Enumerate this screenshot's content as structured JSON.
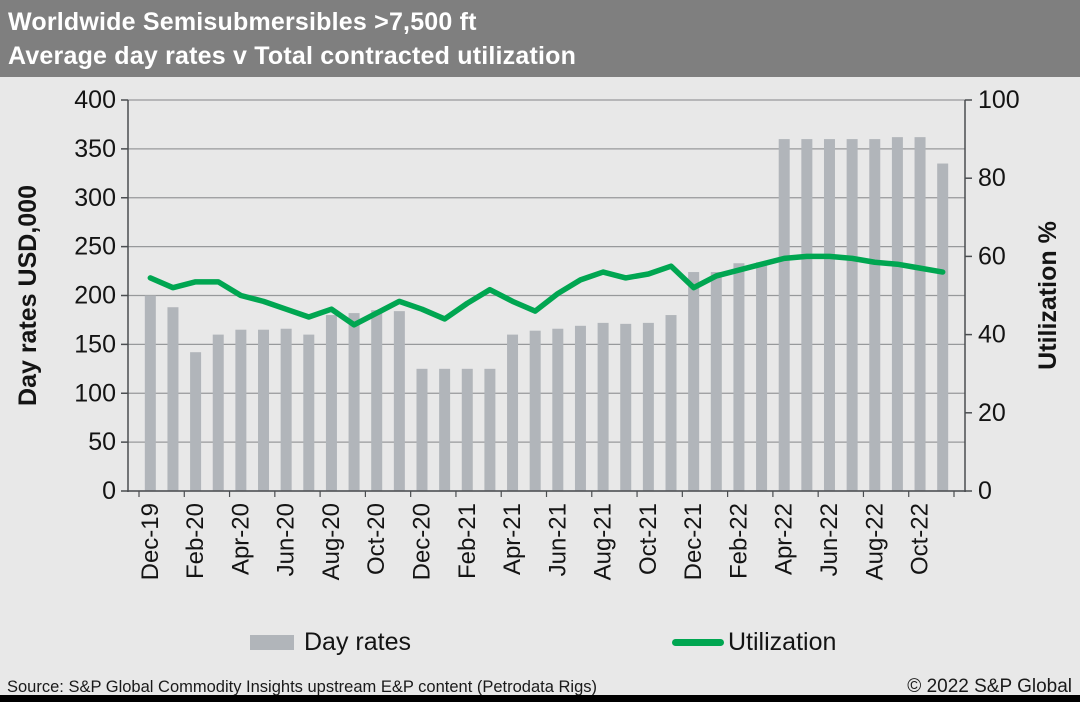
{
  "header": {
    "title_line1": "Worldwide Semisubmersibles >7,500 ft",
    "title_line2": "Average day rates v Total contracted utilization"
  },
  "legend": {
    "day_rates_label": "Day rates",
    "utilization_label": "Utilization"
  },
  "footer": {
    "source": "Source: S&P Global Commodity Insights upstream E&P content (Petrodata Rigs)",
    "copyright": "© 2022 S&P Global"
  },
  "colors": {
    "title_bg": "#7f7f7f",
    "background": "#e8e8e8",
    "bar": "#b1b5ba",
    "line": "#00a651",
    "gridline": "#97999b",
    "axis": "#4a4d50",
    "text": "#141414"
  },
  "chart_data": {
    "type": "bar",
    "subtype": "bar+line combo, dual axis",
    "title": "Worldwide Semisubmersibles >7,500 ft — Average day rates v Total contracted utilization",
    "grid": true,
    "legend_position": "bottom",
    "categories": [
      "Dec-19",
      "Jan-20",
      "Feb-20",
      "Mar-20",
      "Apr-20",
      "May-20",
      "Jun-20",
      "Jul-20",
      "Aug-20",
      "Sep-20",
      "Oct-20",
      "Nov-20",
      "Dec-20",
      "Jan-21",
      "Feb-21",
      "Mar-21",
      "Apr-21",
      "May-21",
      "Jun-21",
      "Jul-21",
      "Aug-21",
      "Sep-21",
      "Oct-21",
      "Nov-21",
      "Dec-21",
      "Jan-22",
      "Feb-22",
      "Mar-22",
      "Apr-22",
      "May-22",
      "Jun-22",
      "Jul-22",
      "Aug-22",
      "Sep-22",
      "Oct-22",
      "Nov-22"
    ],
    "x_tick_labels": [
      "Dec-19",
      "Feb-20",
      "Apr-20",
      "Jun-20",
      "Aug-20",
      "Oct-20",
      "Dec-20",
      "Feb-21",
      "Apr-21",
      "Jun-21",
      "Aug-21",
      "Oct-21",
      "Dec-21",
      "Feb-22",
      "Apr-22",
      "Jun-22",
      "Aug-22",
      "Oct-22"
    ],
    "series": [
      {
        "name": "Day rates",
        "type": "bar",
        "axis": "left",
        "values": [
          200,
          188,
          142,
          160,
          165,
          165,
          166,
          160,
          180,
          182,
          185,
          184,
          125,
          125,
          125,
          125,
          160,
          164,
          166,
          169,
          172,
          171,
          172,
          180,
          224,
          224,
          233,
          234,
          360,
          360,
          360,
          360,
          360,
          362,
          362,
          335
        ]
      },
      {
        "name": "Utilization",
        "type": "line",
        "axis": "right",
        "values": [
          54.5,
          52,
          53.5,
          53.5,
          50,
          48.5,
          46.5,
          44.5,
          46.5,
          42.5,
          45.5,
          48.5,
          46.5,
          44,
          48,
          51.5,
          48.5,
          46,
          50.5,
          54,
          56,
          54.5,
          55.5,
          57.5,
          52,
          55,
          56.5,
          58,
          59.5,
          60,
          60,
          59.5,
          58.5,
          58,
          57,
          56
        ]
      }
    ],
    "left_axis": {
      "label": "Day rates USD,000",
      "min": 0,
      "max": 400,
      "step": 50,
      "ticks": [
        0,
        50,
        100,
        150,
        200,
        250,
        300,
        350,
        400
      ]
    },
    "right_axis": {
      "label": "Utilization  %",
      "min": 0,
      "max": 100,
      "step": 20,
      "ticks": [
        0,
        20,
        40,
        60,
        80,
        100
      ]
    }
  }
}
